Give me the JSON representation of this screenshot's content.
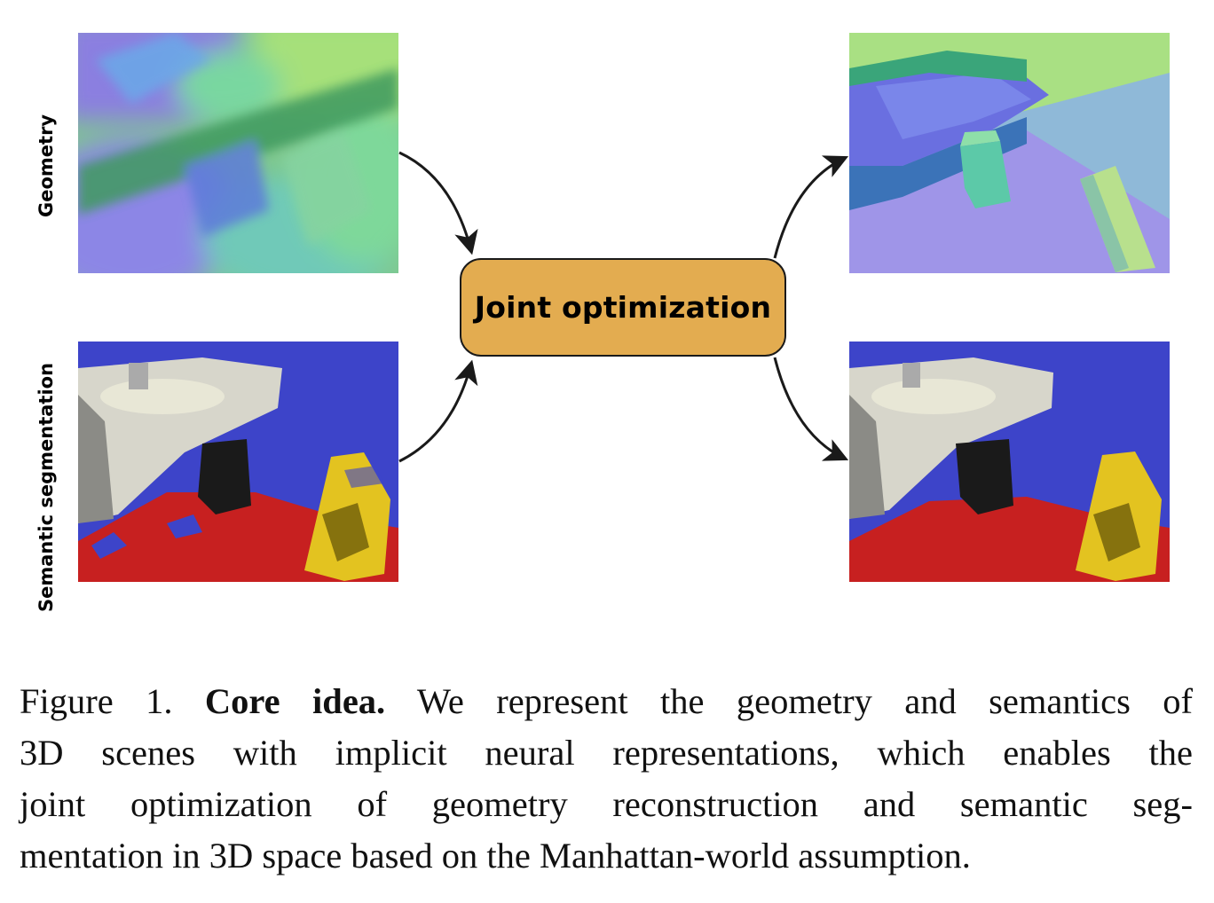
{
  "figure": {
    "row_labels": {
      "geometry": "Geometry",
      "semantic": "Semantic segmentation"
    },
    "center_box": {
      "label": "Joint optimization",
      "color": "#E3AC50"
    },
    "panels": {
      "input_geometry": "noisy-normal-map",
      "input_semantic": "noisy-segmentation-map",
      "output_geometry": "refined-normal-map",
      "output_semantic": "refined-segmentation-map"
    },
    "segmentation_colors": {
      "wall": "#3d44c9",
      "floor": "#c72020",
      "sink": "#d7d6cb",
      "sign": "#e3c320"
    }
  },
  "caption": {
    "prefix": "Figure 1.",
    "bold": "Core idea.",
    "lines": [
      "We represent the geometry and semantics of",
      "3D scenes with implicit neural representations, which enables the",
      "joint optimization of geometry reconstruction and semantic seg-",
      "mentation in 3D space based on the Manhattan-world assumption."
    ]
  }
}
